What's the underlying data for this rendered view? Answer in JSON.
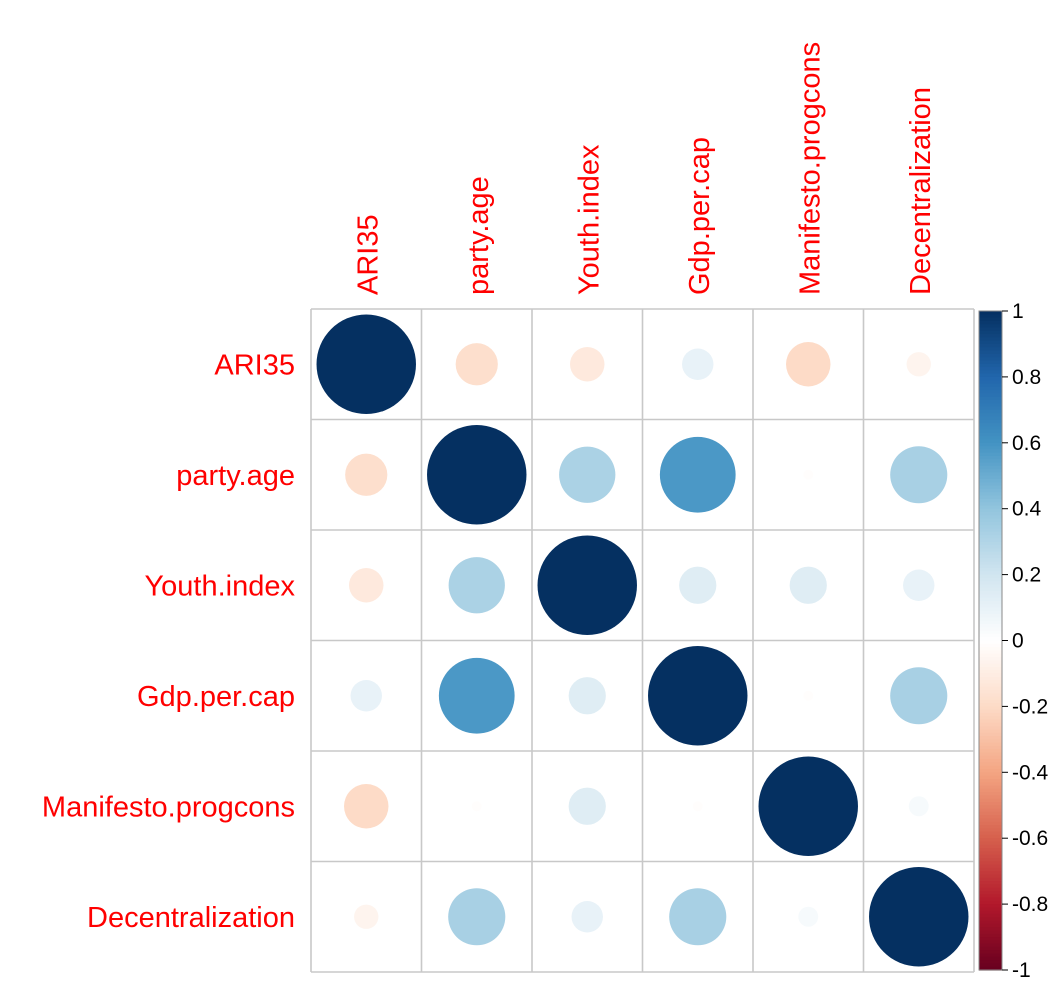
{
  "chart_data": {
    "type": "heatmap",
    "variables": [
      "ARI35",
      "party.age",
      "Youth.index",
      "Gdp.per.cap",
      "Manifesto.progcons",
      "Decentralization"
    ],
    "matrix": [
      [
        1.0,
        -0.18,
        -0.12,
        0.1,
        -0.2,
        -0.06
      ],
      [
        -0.18,
        1.0,
        0.32,
        0.58,
        -0.01,
        0.33
      ],
      [
        -0.12,
        0.32,
        1.0,
        0.14,
        0.14,
        0.1
      ],
      [
        0.1,
        0.58,
        0.14,
        1.0,
        -0.01,
        0.33
      ],
      [
        -0.2,
        -0.01,
        0.14,
        -0.01,
        1.0,
        0.04
      ],
      [
        -0.06,
        0.33,
        0.1,
        0.33,
        0.04,
        1.0
      ]
    ],
    "colorbar": {
      "range": [
        -1,
        1
      ],
      "ticks": [
        "1",
        "0.8",
        "0.6",
        "0.4",
        "0.2",
        "0",
        "-0.2",
        "-0.4",
        "-0.6",
        "-0.8",
        "-1"
      ],
      "palette": [
        "#67001F",
        "#B2182B",
        "#D6604D",
        "#F4A582",
        "#FDDBC7",
        "#FFFFFF",
        "#D1E5F0",
        "#92C5DE",
        "#4393C3",
        "#2166AC",
        "#053061"
      ]
    },
    "label_color": "#FF0000",
    "grid": true
  }
}
